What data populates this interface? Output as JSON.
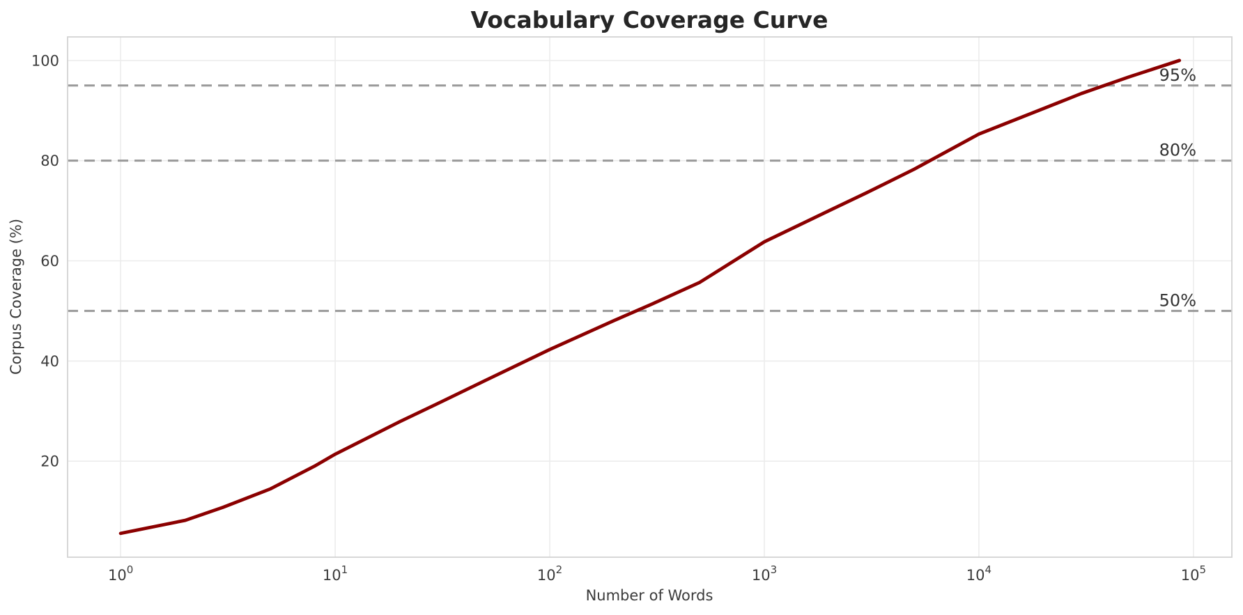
{
  "chart_data": {
    "type": "line",
    "title": "Vocabulary Coverage Curve",
    "xlabel": "Number of Words",
    "ylabel": "Corpus Coverage (%)",
    "xscale": "log",
    "xlim": [
      0.566,
      151000
    ],
    "ylim": [
      0.84,
      104.7
    ],
    "grid": true,
    "legend_position": "none",
    "xticks": [
      {
        "value": 1,
        "label_base": "10",
        "label_exp": "0"
      },
      {
        "value": 10,
        "label_base": "10",
        "label_exp": "1"
      },
      {
        "value": 100,
        "label_base": "10",
        "label_exp": "2"
      },
      {
        "value": 1000,
        "label_base": "10",
        "label_exp": "3"
      },
      {
        "value": 10000,
        "label_base": "10",
        "label_exp": "4"
      },
      {
        "value": 100000,
        "label_base": "10",
        "label_exp": "5"
      }
    ],
    "yticks": [
      20,
      40,
      60,
      80,
      100
    ],
    "series": [
      {
        "name": "vocabulary-coverage",
        "color": "#8B0000",
        "x": [
          1,
          2,
          3,
          5,
          8,
          10,
          20,
          30,
          50,
          100,
          200,
          300,
          500,
          1000,
          2000,
          3000,
          5000,
          10000,
          20000,
          30000,
          50000,
          86000
        ],
        "y": [
          5.6,
          8.2,
          10.8,
          14.5,
          19.0,
          21.4,
          27.9,
          31.5,
          36.1,
          42.3,
          48.1,
          51.4,
          55.7,
          63.8,
          70.0,
          73.6,
          78.3,
          85.3,
          90.4,
          93.4,
          96.7,
          100.0
        ]
      }
    ],
    "reference_lines": [
      {
        "y": 50,
        "label": "50%"
      },
      {
        "y": 80,
        "label": "80%"
      },
      {
        "y": 95,
        "label": "95%"
      }
    ],
    "colors": {
      "curve": "#8B0000",
      "reference_line": "#999999",
      "gridline": "#ECECEC",
      "spine": "#D3D3D3",
      "title_text": "#262626",
      "tick_text": "#3B3B3B",
      "annotation_text": "#333333"
    }
  }
}
